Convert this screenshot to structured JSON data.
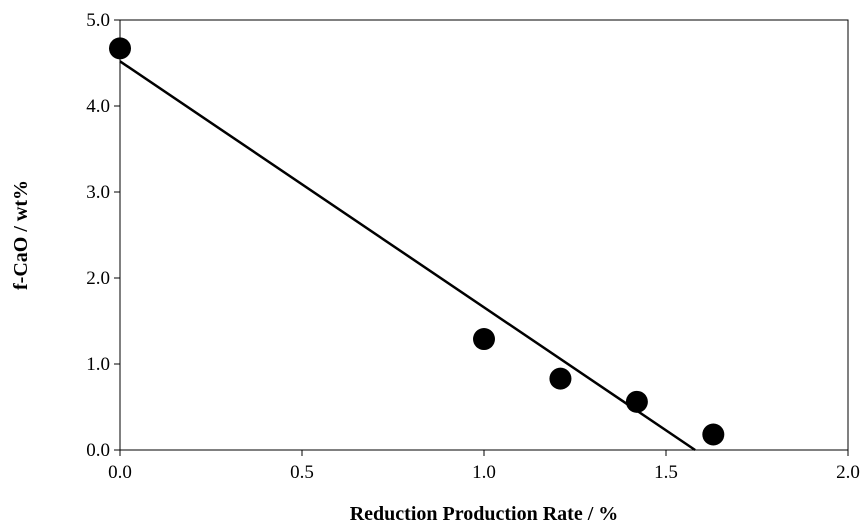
{
  "chart_data": {
    "type": "scatter",
    "title": "",
    "xlabel": "Reduction Production Rate / %",
    "ylabel": "f-CaO / wt%",
    "xlim": [
      0.0,
      2.0
    ],
    "ylim": [
      0.0,
      5.0
    ],
    "x_ticks": [
      "0.0",
      "0.5",
      "1.0",
      "1.5",
      "2.0"
    ],
    "y_ticks": [
      "0.0",
      "1.0",
      "2.0",
      "3.0",
      "4.0",
      "5.0"
    ],
    "x_tick_values": [
      0.0,
      0.5,
      1.0,
      1.5,
      2.0
    ],
    "y_tick_values": [
      0.0,
      1.0,
      2.0,
      3.0,
      4.0,
      5.0
    ],
    "grid": false,
    "legend": "none",
    "marker_color": "#000000",
    "series": [
      {
        "type": "scatter",
        "points": [
          {
            "x": 0.0,
            "y": 4.67
          },
          {
            "x": 1.0,
            "y": 1.29
          },
          {
            "x": 1.21,
            "y": 0.83
          },
          {
            "x": 1.42,
            "y": 0.56
          },
          {
            "x": 1.63,
            "y": 0.18
          }
        ]
      },
      {
        "type": "line",
        "points": [
          {
            "x": 0.0,
            "y": 4.52
          },
          {
            "x": 1.58,
            "y": 0.0
          }
        ]
      }
    ]
  }
}
